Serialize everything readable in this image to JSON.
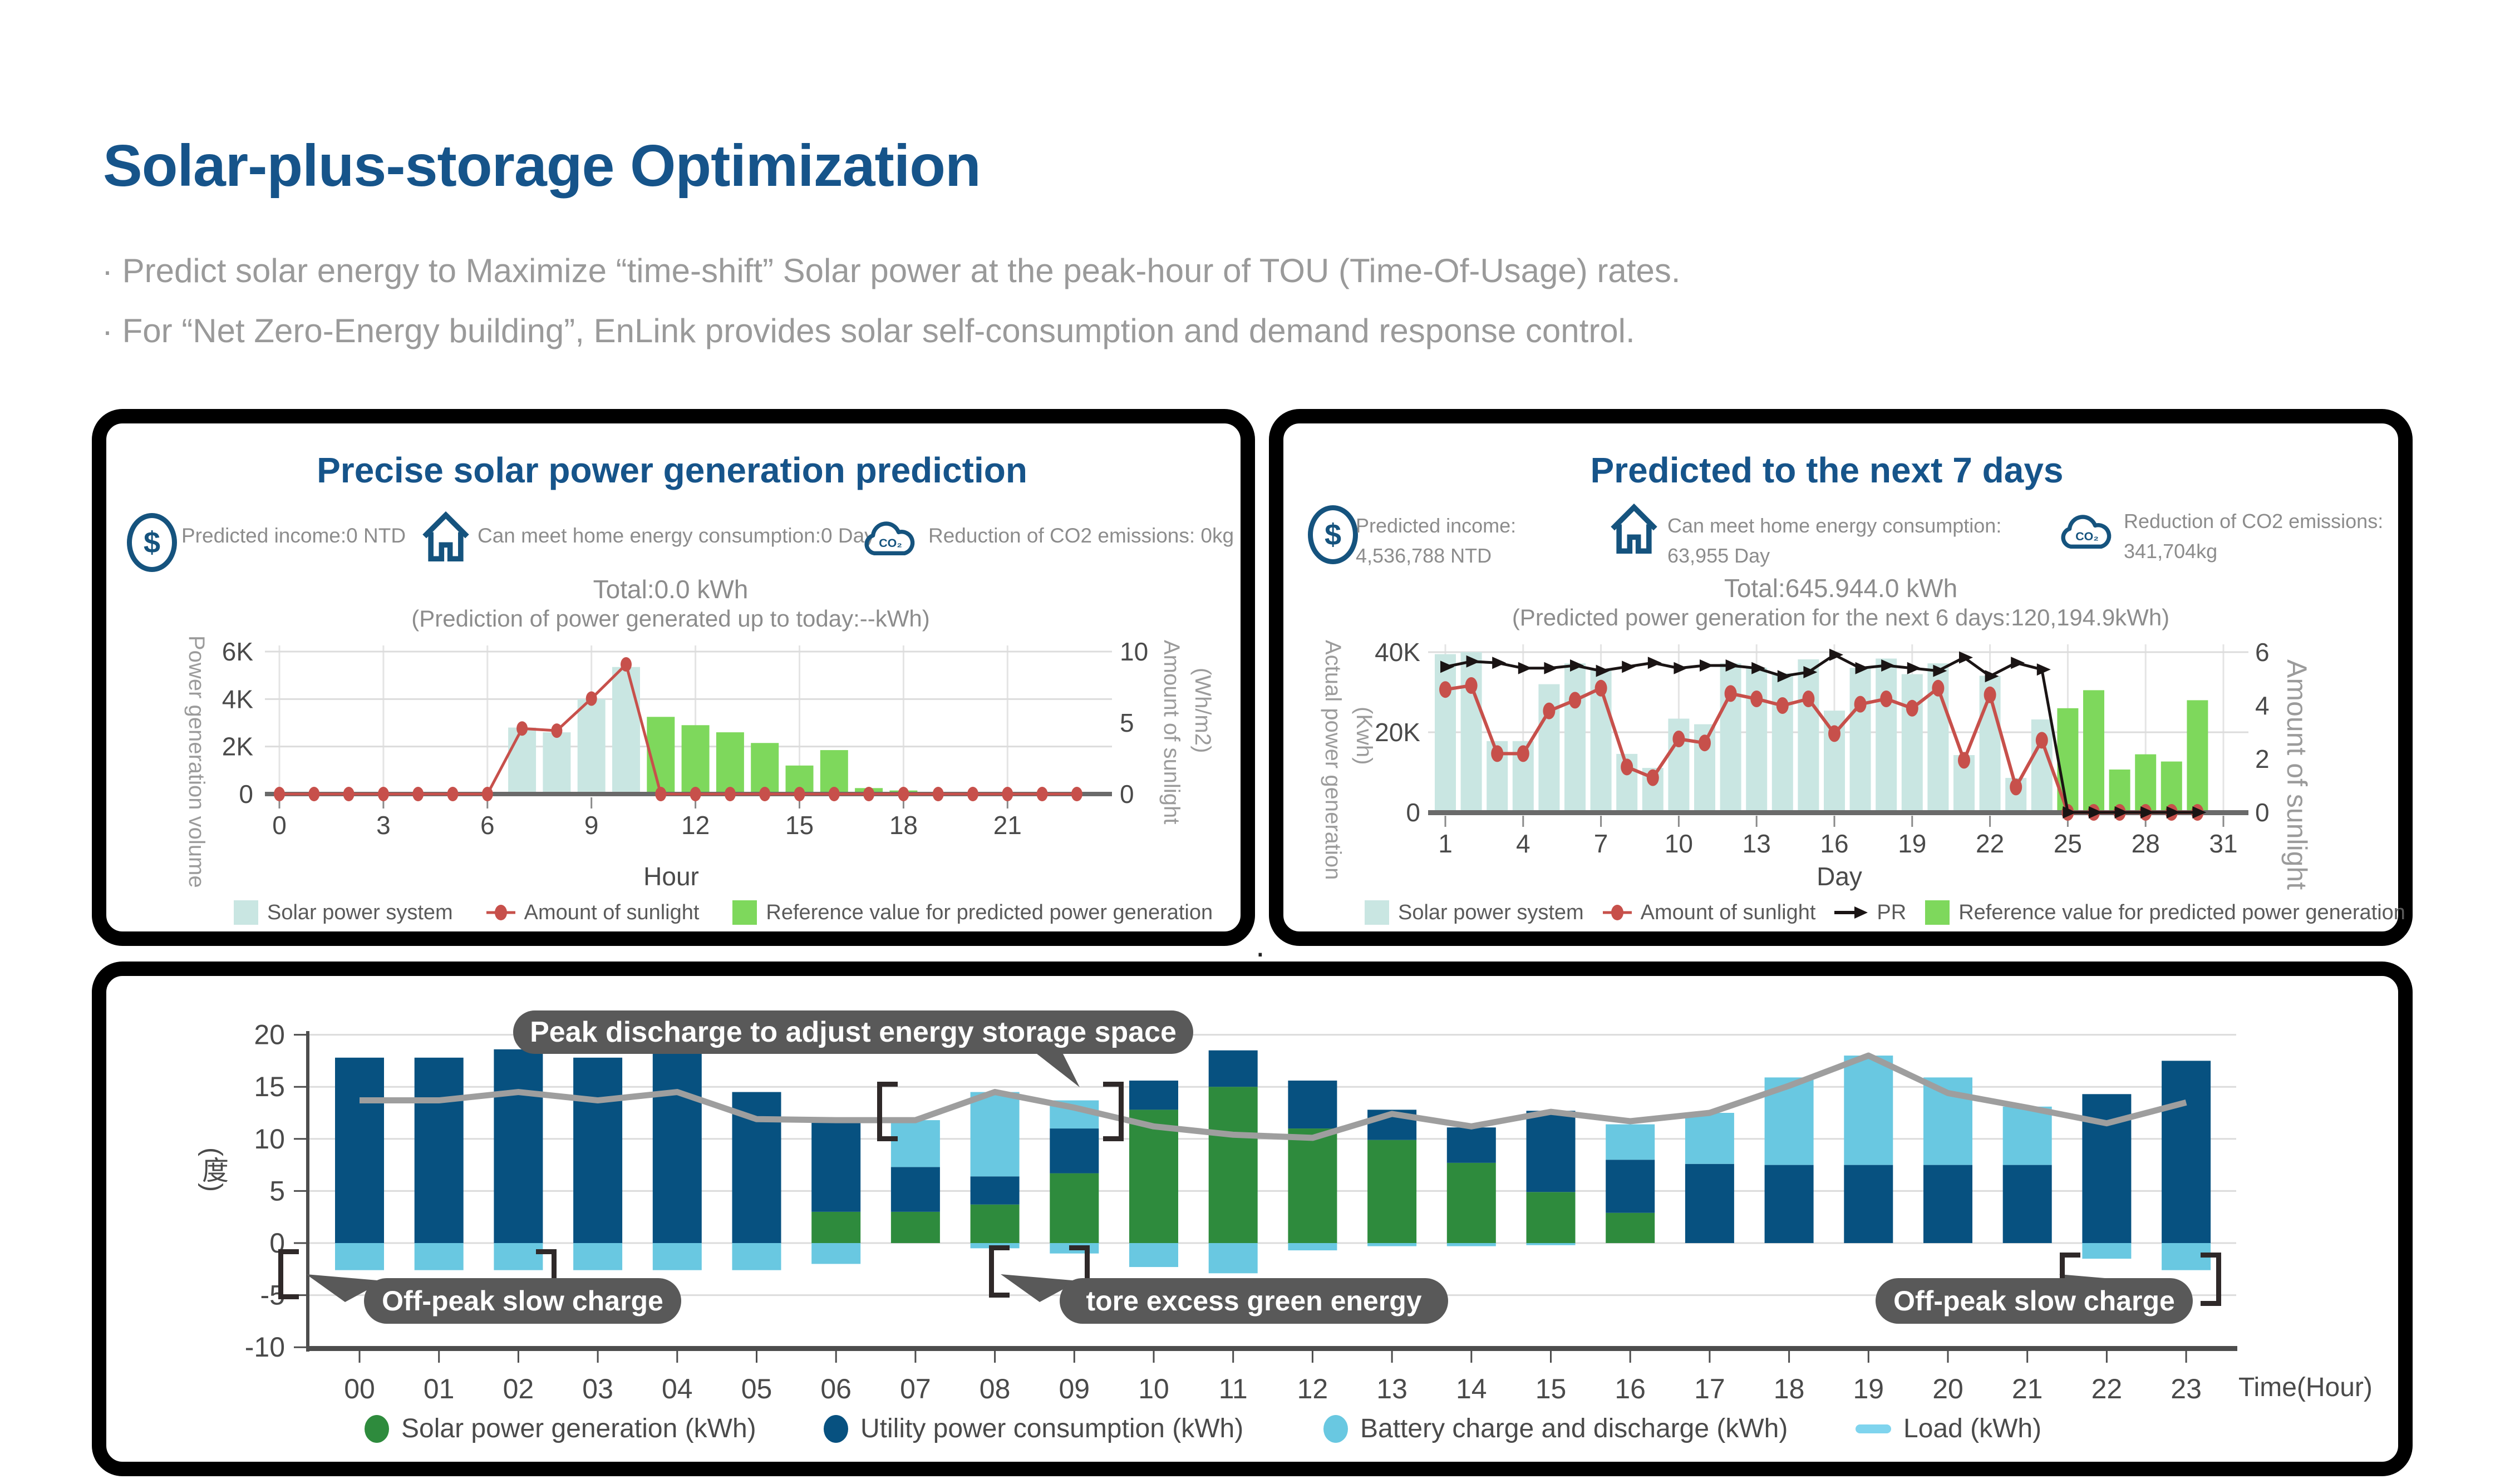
{
  "page": {
    "title": "Solar-plus-storage Optimization",
    "bullets": [
      "·  Predict solar energy to Maximize “time-shift” Solar power at the peak-hour of TOU (Time-Of-Usage) rates.",
      "·  For “Net Zero-Energy building”, EnLink provides solar self-consumption and demand response control."
    ],
    "stray_dot": "."
  },
  "icons": {
    "dollar": "$",
    "co2": "CO₂"
  },
  "colors": {
    "accent_navy": "#16548A",
    "icon_navy": "#15537E",
    "text_gray": "#8C8C8C",
    "bar_teal": "#C9E6E2",
    "bar_green_light": "#7ED85C",
    "line_red": "#C7504B",
    "line_black": "#1A1414",
    "bar_solar_green": "#2E8B3D",
    "bar_utility_blue": "#075180",
    "bar_battery_cyan": "#69C8E1",
    "load_line_gray": "#9E9E9E",
    "pill_gray": "#595959"
  },
  "panel_left": {
    "title": "Precise solar power generation prediction",
    "stats": [
      {
        "icon": "dollar-icon",
        "label": "Predicted income:0 NTD"
      },
      {
        "icon": "home-icon",
        "label": "Can meet home energy consumption:0 Day"
      },
      {
        "icon": "co2-cloud-icon",
        "label": "Reduction of CO2 emissions: 0kg"
      }
    ],
    "total": "Total:0.0 kWh",
    "note": "(Prediction of power generated up to today:--kWh)"
  },
  "panel_right": {
    "title": "Predicted to the next 7 days",
    "stats": [
      {
        "icon": "dollar-icon",
        "label": "Predicted income:",
        "value": "4,536,788 NTD"
      },
      {
        "icon": "home-icon",
        "label": "Can meet home energy consumption:",
        "value": "63,955 Day"
      },
      {
        "icon": "co2-cloud-icon",
        "label": "Reduction of CO2 emissions:",
        "value": "341,704kg"
      }
    ],
    "total": "Total:645.944.0 kWh",
    "note": "(Predicted power generation for the next 6 days:120,194.9kWh)"
  },
  "chart_data": [
    {
      "id": "hourly-prediction",
      "type": "bar",
      "x": [
        0,
        1,
        2,
        3,
        4,
        5,
        6,
        7,
        8,
        9,
        10,
        11,
        12,
        13,
        14,
        15,
        16,
        17,
        18,
        19,
        20,
        21,
        22,
        23
      ],
      "xtick_values": [
        0,
        3,
        6,
        9,
        12,
        15,
        18,
        21
      ],
      "xlabel": "Hour",
      "ylabel_left": "Power generation volume",
      "ylabel_right": "Amount of sunlight",
      "ylabel_right_unit": "(Wh/m2)",
      "ylim_left": [
        0,
        6000
      ],
      "yticks_left": [
        "0",
        "2K",
        "4K",
        "6K"
      ],
      "ylim_right": [
        0,
        10
      ],
      "yticks_right": [
        "0",
        "5",
        "10"
      ],
      "legend_position": "bottom",
      "grid": true,
      "series": [
        {
          "name": "Solar power system",
          "type": "bar",
          "axis": "left",
          "values": [
            0,
            0,
            0,
            0,
            0,
            0,
            0,
            2800,
            2600,
            4000,
            5350,
            0,
            0,
            0,
            0,
            0,
            0,
            0,
            0,
            0,
            0,
            0,
            0,
            0
          ]
        },
        {
          "name": "Amount of sunlight",
          "type": "line",
          "axis": "right",
          "values": [
            0,
            0,
            0,
            0,
            0,
            0,
            0,
            4.6,
            4.45,
            6.7,
            9.1,
            0,
            0,
            0,
            0,
            0,
            0,
            0,
            0,
            0,
            0,
            0,
            0,
            0
          ]
        },
        {
          "name": "Reference value for predicted power generation",
          "type": "bar",
          "axis": "left",
          "values": [
            0,
            0,
            0,
            0,
            0,
            0,
            0,
            0,
            0,
            0,
            0,
            3250,
            2900,
            2600,
            2150,
            1200,
            1850,
            250,
            150,
            0,
            0,
            0,
            0,
            0
          ]
        }
      ]
    },
    {
      "id": "monthly-prediction",
      "type": "bar",
      "x": [
        1,
        2,
        3,
        4,
        5,
        6,
        7,
        8,
        9,
        10,
        11,
        12,
        13,
        14,
        15,
        16,
        17,
        18,
        19,
        20,
        21,
        22,
        23,
        24,
        25,
        26,
        27,
        28,
        29,
        30
      ],
      "xtick_values": [
        1,
        4,
        7,
        10,
        13,
        16,
        19,
        22,
        25,
        28,
        31
      ],
      "xlabel": "Day",
      "ylabel_left": "Actual power generation",
      "ylabel_left_unit": "(Kwh)",
      "ylabel_right": "Amount of sunlight",
      "ylim_left": [
        0,
        40000
      ],
      "yticks_left": [
        "0",
        "20K",
        "40K"
      ],
      "ylim_right": [
        0,
        6
      ],
      "yticks_right": [
        "0",
        "2",
        "4",
        "6"
      ],
      "legend_position": "bottom",
      "grid": true,
      "series": [
        {
          "name": "Solar power system",
          "type": "bar",
          "axis": "left",
          "values": [
            39500,
            40000,
            17800,
            17800,
            32000,
            37200,
            35600,
            14600,
            11100,
            23400,
            22000,
            37200,
            36100,
            34700,
            38200,
            25400,
            36100,
            38400,
            34500,
            37200,
            14300,
            34100,
            8600,
            23200,
            0,
            0,
            0,
            0,
            0,
            0
          ]
        },
        {
          "name": "Amount of sunlight",
          "type": "line",
          "axis": "right",
          "values": [
            4.6,
            4.75,
            2.2,
            2.2,
            3.8,
            4.2,
            4.65,
            1.7,
            1.3,
            2.75,
            2.6,
            4.45,
            4.25,
            4.0,
            4.25,
            2.95,
            4.05,
            4.25,
            3.9,
            4.65,
            1.95,
            4.4,
            0.95,
            2.7,
            0,
            0,
            0,
            0,
            0,
            0
          ]
        },
        {
          "name": "PR",
          "type": "line",
          "axis": "right",
          "values": [
            5.45,
            5.65,
            5.6,
            5.4,
            5.4,
            5.5,
            5.3,
            5.45,
            5.6,
            5.4,
            5.5,
            5.5,
            5.4,
            5.1,
            5.25,
            5.9,
            5.4,
            5.5,
            5.4,
            5.3,
            5.8,
            5.1,
            5.6,
            5.35,
            0,
            0,
            0,
            0,
            0,
            0
          ]
        },
        {
          "name": "Reference value for predicted power generation",
          "type": "bar",
          "axis": "left",
          "values": [
            0,
            0,
            0,
            0,
            0,
            0,
            0,
            0,
            0,
            0,
            0,
            0,
            0,
            0,
            0,
            0,
            0,
            0,
            0,
            0,
            0,
            0,
            0,
            0,
            26000,
            30500,
            10700,
            14500,
            12700,
            28000
          ]
        }
      ]
    },
    {
      "id": "daily-schedule",
      "type": "bar",
      "categories": [
        "00",
        "01",
        "02",
        "03",
        "04",
        "05",
        "06",
        "07",
        "08",
        "09",
        "10",
        "11",
        "12",
        "13",
        "14",
        "15",
        "16",
        "17",
        "18",
        "19",
        "20",
        "21",
        "22",
        "23"
      ],
      "xlabel": "Time(Hour)",
      "ylabel": "(度)",
      "ylim": [
        -10,
        20
      ],
      "yticks": [
        "20",
        "15",
        "10",
        "5",
        "0",
        "-5",
        "-10"
      ],
      "legend_position": "bottom",
      "grid": true,
      "series": [
        {
          "name": "Solar power generation (kWh)",
          "type": "bar",
          "values": [
            0,
            0,
            0,
            0,
            0,
            0,
            3.0,
            3.0,
            3.7,
            6.7,
            12.8,
            15.0,
            11.0,
            9.9,
            7.7,
            4.9,
            2.9,
            0,
            0,
            0,
            0,
            0,
            0,
            0
          ]
        },
        {
          "name": "Utility power consumption (kWh)",
          "type": "bar",
          "values": [
            17.8,
            17.8,
            18.6,
            17.8,
            18.6,
            14.5,
            8.6,
            4.3,
            2.7,
            4.3,
            2.8,
            3.5,
            4.6,
            2.9,
            3.4,
            7.8,
            5.1,
            7.6,
            7.5,
            7.5,
            7.5,
            7.5,
            14.3,
            17.5
          ]
        },
        {
          "name": "Battery charge and discharge (kWh)",
          "type": "bar",
          "values_discharge": [
            0,
            0,
            0,
            0,
            0,
            0,
            0,
            4.5,
            8.1,
            2.7,
            0,
            0,
            0,
            0,
            0,
            0,
            3.4,
            4.9,
            8.4,
            10.5,
            8.4,
            5.6,
            0,
            0
          ],
          "values_charge": [
            -2.6,
            -2.6,
            -2.6,
            -2.6,
            -2.6,
            -2.6,
            -2.0,
            0,
            -0.5,
            -1.0,
            -2.3,
            -2.9,
            -0.7,
            -0.3,
            -0.3,
            -0.2,
            0,
            0,
            0,
            0,
            0,
            0,
            -1.5,
            -2.6
          ]
        },
        {
          "name": "Load (kWh)",
          "type": "line",
          "values": [
            13.7,
            13.7,
            14.5,
            13.7,
            14.5,
            11.9,
            11.8,
            11.8,
            14.5,
            13.0,
            11.2,
            10.4,
            10.1,
            12.4,
            11.2,
            12.6,
            11.7,
            12.5,
            15.1,
            18.0,
            14.4,
            13.0,
            11.5,
            13.5
          ]
        }
      ],
      "annotations": [
        {
          "text": "Peak discharge to adjust energy storage space"
        },
        {
          "text": "Off-peak slow charge"
        },
        {
          "text": "tore excess green energy"
        },
        {
          "text": "Off-peak slow charge"
        }
      ]
    }
  ]
}
